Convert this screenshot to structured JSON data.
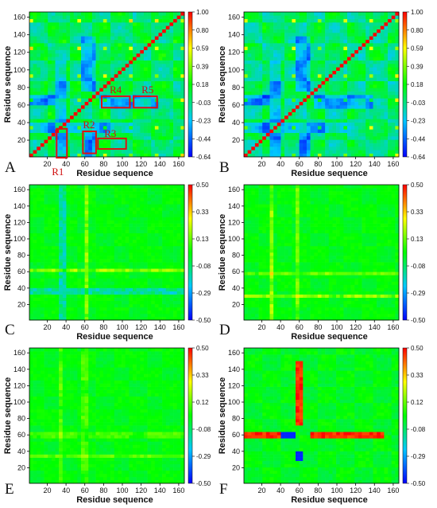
{
  "chart_data": [
    {
      "panel": "A",
      "type": "heatmap",
      "xlabel": "Residue sequence",
      "ylabel": "Residue sequence",
      "x_ticks": [
        20,
        40,
        60,
        80,
        100,
        120,
        140,
        160
      ],
      "y_ticks": [
        20,
        40,
        60,
        80,
        100,
        120,
        140,
        160
      ],
      "xlim": [
        1,
        166
      ],
      "ylim": [
        1,
        166
      ],
      "colorbar_ticks": [
        "1.00",
        "0.80",
        "0.59",
        "0.39",
        "0.18",
        "-0.03",
        "-0.23",
        "-0.44",
        "-0.64"
      ],
      "colorbar_range": [
        -0.64,
        1.0
      ],
      "regions": [
        {
          "label": "R1",
          "x": [
            30,
            41
          ],
          "y": [
            0,
            33
          ]
        },
        {
          "label": "R2",
          "x": [
            58,
            72
          ],
          "y": [
            5,
            30
          ]
        },
        {
          "label": "R3",
          "x": [
            74,
            104
          ],
          "y": [
            10,
            22
          ]
        },
        {
          "label": "R4",
          "x": [
            78,
            108
          ],
          "y": [
            57,
            70
          ]
        },
        {
          "label": "R5",
          "x": [
            112,
            137
          ],
          "y": [
            57,
            70
          ]
        }
      ]
    },
    {
      "panel": "B",
      "type": "heatmap",
      "xlabel": "Residue sequence",
      "ylabel": "Residue sequence",
      "x_ticks": [
        20,
        40,
        60,
        80,
        100,
        120,
        140,
        160
      ],
      "y_ticks": [
        20,
        40,
        60,
        80,
        100,
        120,
        140,
        160
      ],
      "xlim": [
        1,
        166
      ],
      "ylim": [
        1,
        166
      ],
      "colorbar_ticks": [
        "1.00",
        "0.80",
        "0.59",
        "0.39",
        "0.18",
        "-0.03",
        "-0.23",
        "-0.44",
        "-0.64"
      ],
      "colorbar_range": [
        -0.64,
        1.0
      ]
    },
    {
      "panel": "C",
      "type": "heatmap",
      "xlabel": "Residue sequence",
      "ylabel": "Residue sequence",
      "x_ticks": [
        20,
        40,
        60,
        80,
        100,
        120,
        140,
        160
      ],
      "y_ticks": [
        20,
        40,
        60,
        80,
        100,
        120,
        140,
        160
      ],
      "xlim": [
        1,
        166
      ],
      "ylim": [
        1,
        166
      ],
      "colorbar_ticks": [
        "0.50",
        "0.33",
        "0.13",
        "-0.08",
        "-0.29",
        "-0.50"
      ],
      "colorbar_range": [
        -0.5,
        0.5
      ]
    },
    {
      "panel": "D",
      "type": "heatmap",
      "xlabel": "Residue sequence",
      "ylabel": "Residue sequence",
      "x_ticks": [
        20,
        40,
        60,
        80,
        100,
        120,
        140,
        160
      ],
      "y_ticks": [
        20,
        40,
        60,
        80,
        100,
        120,
        140,
        160
      ],
      "xlim": [
        1,
        166
      ],
      "ylim": [
        1,
        166
      ],
      "colorbar_ticks": [
        "0.50",
        "0.33",
        "0.13",
        "-0.08",
        "-0.29",
        "-0.50"
      ],
      "colorbar_range": [
        -0.5,
        0.5
      ]
    },
    {
      "panel": "E",
      "type": "heatmap",
      "xlabel": "Residue sequence",
      "ylabel": "Residue sequence",
      "x_ticks": [
        20,
        40,
        60,
        80,
        100,
        120,
        140,
        160
      ],
      "y_ticks": [
        20,
        40,
        60,
        80,
        100,
        120,
        140,
        160
      ],
      "xlim": [
        1,
        166
      ],
      "ylim": [
        1,
        166
      ],
      "colorbar_ticks": [
        "0.50",
        "0.33",
        "0.12",
        "-0.08",
        "-0.29",
        "-0.50"
      ],
      "colorbar_range": [
        -0.5,
        0.5
      ]
    },
    {
      "panel": "F",
      "type": "heatmap",
      "xlabel": "Residue sequence",
      "ylabel": "Residue sequence",
      "x_ticks": [
        20,
        40,
        60,
        80,
        100,
        120,
        140,
        160
      ],
      "y_ticks": [
        20,
        40,
        60,
        80,
        100,
        120,
        140,
        160
      ],
      "xlim": [
        1,
        166
      ],
      "ylim": [
        1,
        166
      ],
      "colorbar_ticks": [
        "0.50",
        "0.33",
        "0.12",
        "-0.08",
        "-0.29",
        "-0.50"
      ],
      "colorbar_range": [
        -0.5,
        0.5
      ]
    }
  ],
  "colors": {
    "map_low": "#0000ff",
    "map_mid": "#00ff00",
    "map_high": "#ff0000",
    "region_box": "#e01010"
  }
}
